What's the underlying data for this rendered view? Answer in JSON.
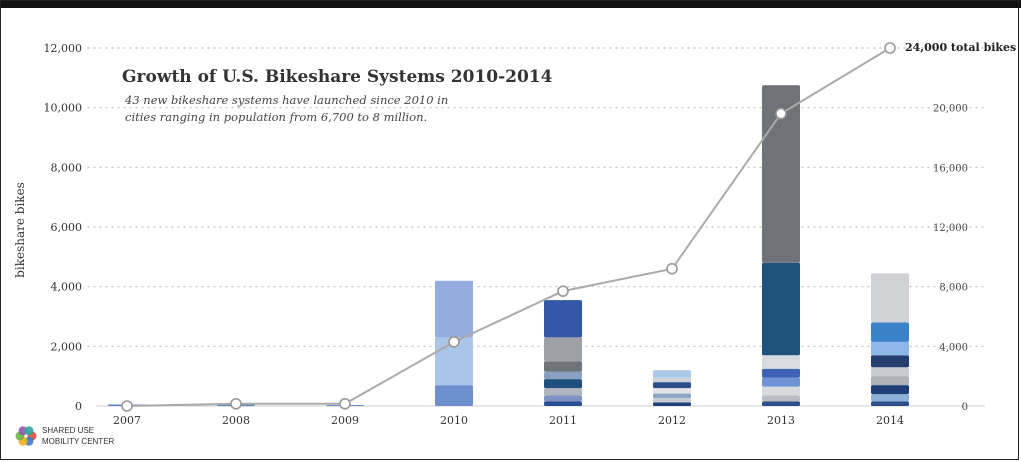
{
  "chart_data": {
    "type": "bar",
    "title": "Growth of U.S. Bikeshare Systems 2010-2014",
    "subtitle_lines": [
      "43 new bikeshare systems have launched since 2010 in",
      "cities ranging in population from 6,700 to 8 million."
    ],
    "ylabel": "bikeshare bikes",
    "ylim": [
      0,
      12000
    ],
    "y_ticks": [
      "0",
      "2,000",
      "4,000",
      "6,000",
      "8,000",
      "10,000",
      "12,000"
    ],
    "y2lim": [
      0,
      24000
    ],
    "y2_ticks": [
      "0",
      "4,000",
      "8,000",
      "12,000",
      "16,000",
      "20,000"
    ],
    "categories": [
      "2007",
      "2008",
      "2009",
      "2010",
      "2011",
      "2012",
      "2013",
      "2014"
    ],
    "stacked_bars": [
      [
        {
          "v": 50,
          "c": "#5a7fc4"
        }
      ],
      [
        {
          "v": 100,
          "c": "#5a7fc4"
        }
      ],
      [
        {
          "v": 30,
          "c": "#5a7fc4"
        }
      ],
      [
        {
          "v": 700,
          "c": "#6d8fd0"
        },
        {
          "v": 1600,
          "c": "#a9c6e8"
        },
        {
          "v": 1900,
          "c": "#93ace0"
        }
      ],
      [
        {
          "v": 150,
          "c": "#2b4f95"
        },
        {
          "v": 200,
          "c": "#7b94c4"
        },
        {
          "v": 250,
          "c": "#b0b4bc"
        },
        {
          "v": 300,
          "c": "#1e4f7e"
        },
        {
          "v": 250,
          "c": "#8aa0c0"
        },
        {
          "v": 350,
          "c": "#6f737a"
        },
        {
          "v": 800,
          "c": "#9ea2a8"
        },
        {
          "v": 1250,
          "c": "#3358a8"
        }
      ],
      [
        {
          "v": 120,
          "c": "#1f3f78"
        },
        {
          "v": 150,
          "c": "#c8ccd2"
        },
        {
          "v": 150,
          "c": "#8fa6c8"
        },
        {
          "v": 180,
          "c": "#e2e4e8"
        },
        {
          "v": 200,
          "c": "#2c4f8c"
        },
        {
          "v": 150,
          "c": "#cdd3dd"
        },
        {
          "v": 250,
          "c": "#aac8e8"
        }
      ],
      [
        {
          "v": 150,
          "c": "#2c4f8c"
        },
        {
          "v": 200,
          "c": "#b8bcc4"
        },
        {
          "v": 300,
          "c": "#d8dade"
        },
        {
          "v": 300,
          "c": "#6e93d4"
        },
        {
          "v": 300,
          "c": "#3c63b8"
        },
        {
          "v": 450,
          "c": "#d7dadf"
        },
        {
          "v": 3100,
          "c": "#1e537e"
        },
        {
          "v": 5950,
          "c": "#6f7277"
        }
      ],
      [
        {
          "v": 150,
          "c": "#2c4f8c"
        },
        {
          "v": 250,
          "c": "#8fb0d8"
        },
        {
          "v": 300,
          "c": "#1f3f78"
        },
        {
          "v": 300,
          "c": "#aeb2b8"
        },
        {
          "v": 300,
          "c": "#c8ccd2"
        },
        {
          "v": 400,
          "c": "#253f70"
        },
        {
          "v": 450,
          "c": "#8eb8e8"
        },
        {
          "v": 650,
          "c": "#3a82c8"
        },
        {
          "v": 1650,
          "c": "#d0d2d6"
        }
      ]
    ],
    "line_series": {
      "axis": "right",
      "values": [
        0,
        150,
        150,
        4300,
        7700,
        9200,
        19600,
        24000
      ],
      "end_label": "24,000 total bikes"
    }
  },
  "logo": {
    "line1": "SHARED USE",
    "line2": "MOBILITY CENTER",
    "colors": [
      "#e04a3a",
      "#3d7cc9",
      "#f2b21b",
      "#6fb443",
      "#8e5aa8",
      "#29a7a0"
    ]
  }
}
